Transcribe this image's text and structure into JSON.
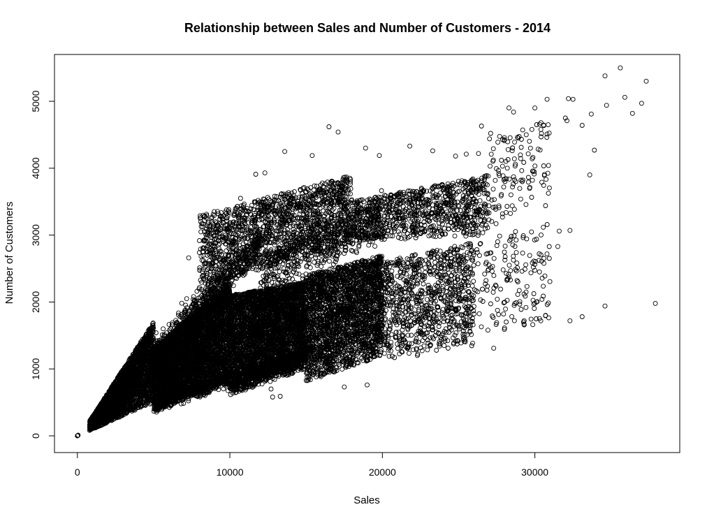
{
  "chart_data": {
    "type": "scatter",
    "title": "Relationship between Sales and Number of Customers - 2014",
    "xlabel": "Sales",
    "ylabel": "Number of Customers",
    "xlim": [
      -1500,
      39500
    ],
    "ylim": [
      -250,
      5700
    ],
    "xticks": [
      0,
      10000,
      20000,
      30000
    ],
    "yticks": [
      0,
      1000,
      2000,
      3000,
      4000,
      5000
    ],
    "xtick_labels": [
      "0",
      "10000",
      "20000",
      "30000"
    ],
    "ytick_labels": [
      "0",
      "1000",
      "2000",
      "3000",
      "4000",
      "5000"
    ],
    "grid": false,
    "marker": "open-circle",
    "series": [
      {
        "points": [
          [
            0,
            0
          ],
          [
            30,
            5
          ],
          [
            50,
            10
          ],
          [
            35600,
            5500
          ],
          [
            34600,
            5380
          ],
          [
            37300,
            5300
          ],
          [
            35900,
            5060
          ],
          [
            32200,
            5040
          ],
          [
            32500,
            5030
          ],
          [
            30800,
            5030
          ],
          [
            37000,
            4970
          ],
          [
            34700,
            4940
          ],
          [
            33100,
            4640
          ],
          [
            36400,
            4820
          ],
          [
            33700,
            4810
          ],
          [
            32000,
            4750
          ],
          [
            32100,
            4710
          ],
          [
            30000,
            4900
          ],
          [
            29800,
            4580
          ],
          [
            30400,
            4680
          ],
          [
            33900,
            4270
          ],
          [
            33600,
            3900
          ],
          [
            31600,
            3060
          ],
          [
            32300,
            3070
          ],
          [
            31500,
            2830
          ],
          [
            30700,
            3440
          ],
          [
            29900,
            2520
          ],
          [
            34600,
            1940
          ],
          [
            37900,
            1980
          ],
          [
            33100,
            1780
          ],
          [
            32300,
            1720
          ],
          [
            30700,
            1800
          ],
          [
            29100,
            1890
          ],
          [
            29300,
            1720
          ],
          [
            28000,
            1590
          ],
          [
            27300,
            1310
          ],
          [
            28600,
            4840
          ],
          [
            28300,
            4900
          ],
          [
            27100,
            4520
          ],
          [
            26500,
            4630
          ],
          [
            26300,
            4220
          ],
          [
            25500,
            4210
          ],
          [
            24800,
            4180
          ],
          [
            23300,
            4260
          ],
          [
            21800,
            4330
          ],
          [
            16500,
            4620
          ],
          [
            17100,
            4540
          ],
          [
            13600,
            4250
          ],
          [
            18900,
            4300
          ],
          [
            15400,
            4190
          ],
          [
            19800,
            4190
          ],
          [
            11700,
            3910
          ],
          [
            12300,
            3930
          ],
          [
            10700,
            3550
          ],
          [
            7300,
            2660
          ],
          [
            8000,
            2740
          ],
          [
            12800,
            580
          ],
          [
            13300,
            590
          ],
          [
            12700,
            700
          ],
          [
            19000,
            760
          ],
          [
            17500,
            730
          ]
        ]
      }
    ],
    "clusters": [
      {
        "type": "band",
        "x": [
          800,
          5000
        ],
        "ylow": [
          80,
          500
        ],
        "yhigh": [
          220,
          1700
        ],
        "n": 2600
      },
      {
        "type": "band",
        "x": [
          5000,
          10000
        ],
        "ylow": [
          350,
          850
        ],
        "yhigh": [
          1300,
          2300
        ],
        "n": 4200
      },
      {
        "type": "band",
        "x": [
          10000,
          15000
        ],
        "ylow": [
          600,
          1000
        ],
        "yhigh": [
          2100,
          2300
        ],
        "n": 3600
      },
      {
        "type": "band",
        "x": [
          15000,
          20000
        ],
        "ylow": [
          800,
          1200
        ],
        "yhigh": [
          2400,
          2700
        ],
        "n": 2400
      },
      {
        "type": "band",
        "x": [
          20000,
          26000
        ],
        "ylow": [
          1100,
          1350
        ],
        "yhigh": [
          2600,
          2900
        ],
        "n": 900
      },
      {
        "type": "band",
        "x": [
          26000,
          31000
        ],
        "ylow": [
          1500,
          1700
        ],
        "yhigh": [
          2900,
          3200
        ],
        "n": 160
      },
      {
        "type": "band",
        "x": [
          8000,
          18000
        ],
        "ylow": [
          2200,
          2900
        ],
        "yhigh": [
          3300,
          3900
        ],
        "n": 1500
      },
      {
        "type": "band",
        "x": [
          18000,
          27000
        ],
        "ylow": [
          2900,
          3000
        ],
        "yhigh": [
          3500,
          3900
        ],
        "n": 900
      },
      {
        "type": "band",
        "x": [
          27000,
          31000
        ],
        "ylow": [
          3100,
          3600
        ],
        "yhigh": [
          4500,
          4700
        ],
        "n": 120
      },
      {
        "type": "line",
        "x": [
          5000,
          15000
        ],
        "y": [
          500,
          1200
        ],
        "spread": 60,
        "n": 900
      },
      {
        "type": "line",
        "x": [
          3000,
          12000
        ],
        "y": [
          700,
          2900
        ],
        "spread": 130,
        "n": 800
      },
      {
        "type": "line",
        "x": [
          12000,
          20000
        ],
        "y": [
          2400,
          3300
        ],
        "spread": 180,
        "n": 500
      }
    ]
  }
}
